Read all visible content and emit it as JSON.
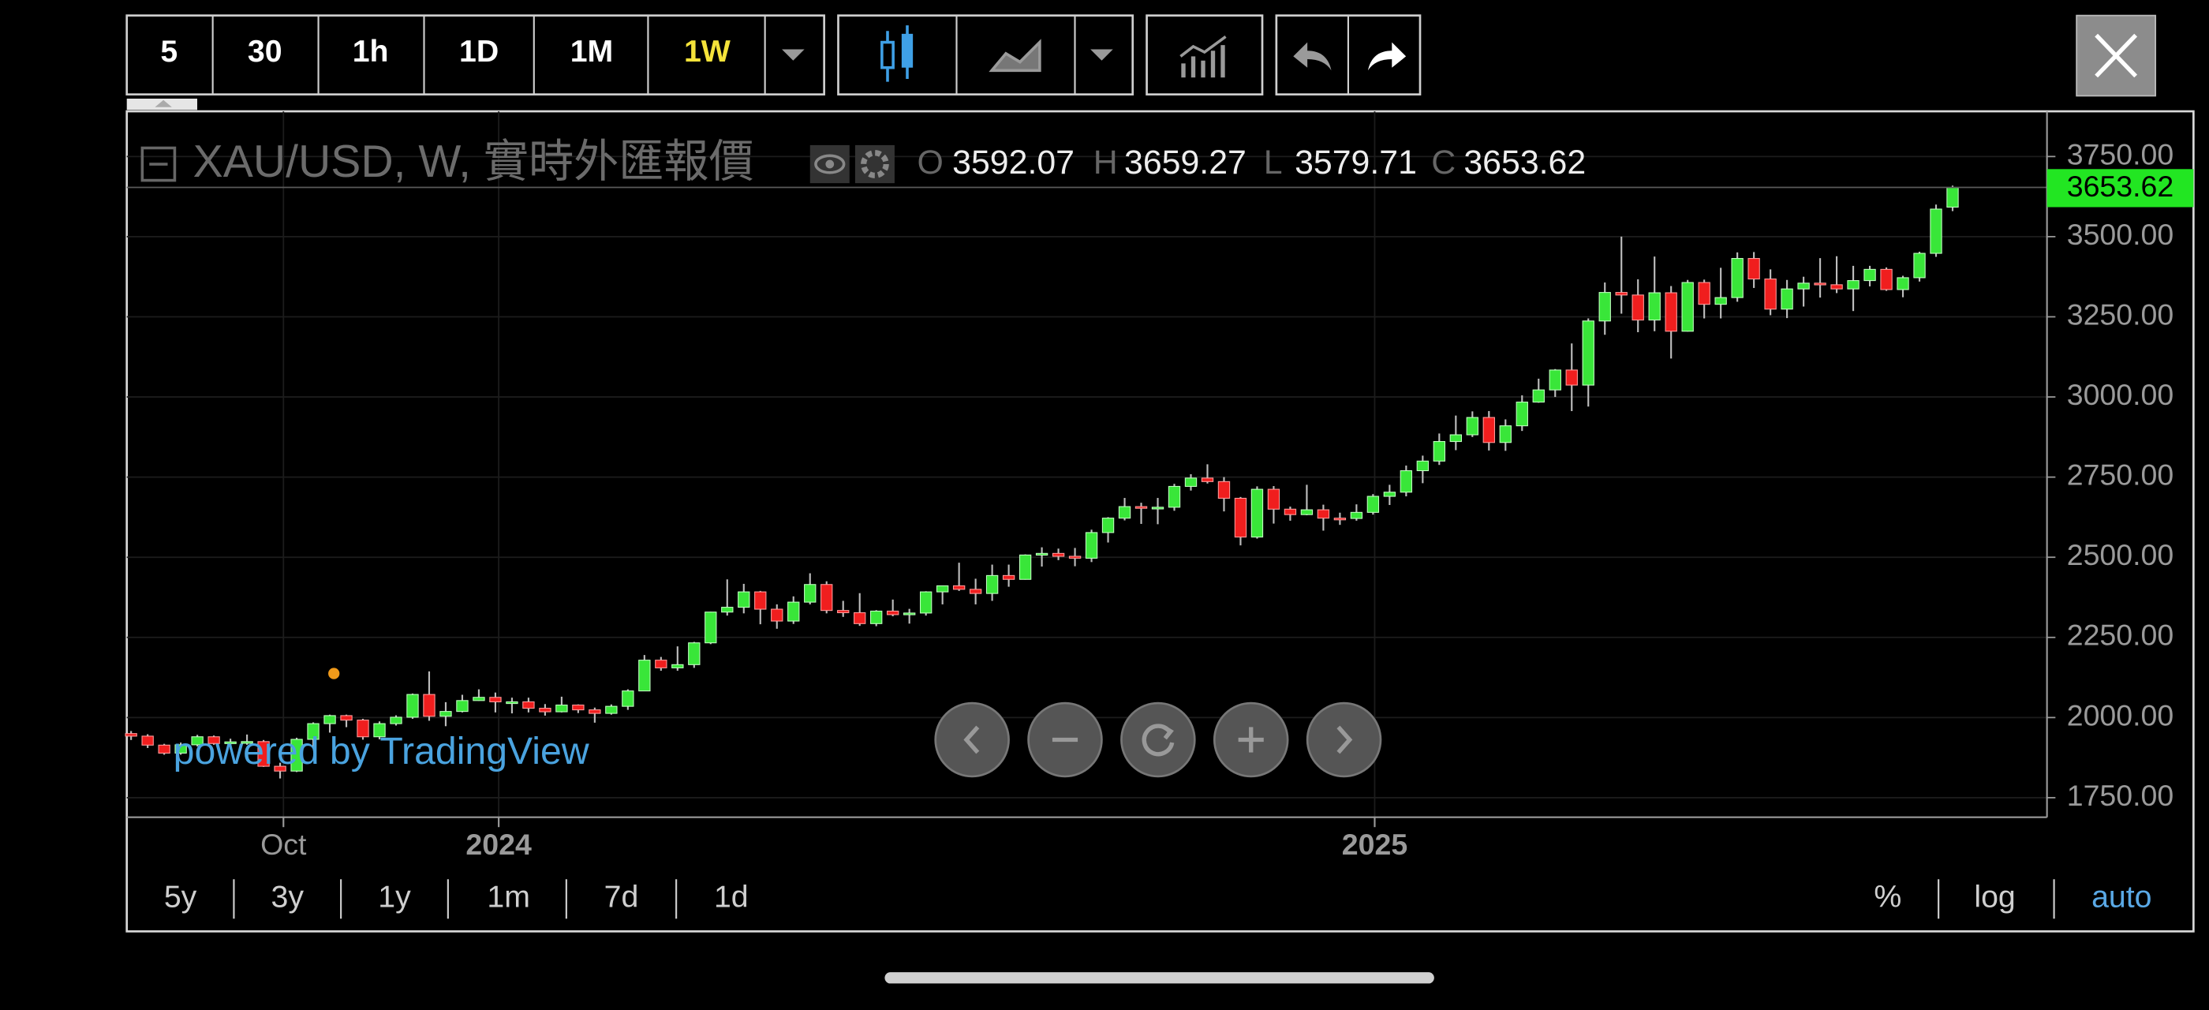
{
  "toolbar": {
    "intervals": [
      "5",
      "30",
      "1h",
      "1D",
      "1M",
      "1W"
    ]
  },
  "ranges": [
    "5y",
    "3y",
    "1y",
    "1m",
    "7d",
    "1d"
  ],
  "scale_options": [
    "%",
    "log",
    "auto"
  ],
  "watermark": "powered by TradingView",
  "chart_data": {
    "type": "candlestick",
    "title": "XAU/USD, W, 實時外匯報價",
    "ohlc_labels": [
      "O",
      "H",
      "L",
      "C"
    ],
    "open": [
      1950,
      1942,
      1914,
      1889,
      1915,
      1940,
      1919,
      1924,
      1925,
      1848,
      1833,
      1932,
      1981,
      2006,
      1992,
      1940,
      1981,
      2001,
      2072,
      2004,
      2019,
      2053,
      2063,
      2049,
      2049,
      2029,
      2018,
      2039,
      2024,
      2013,
      2035,
      2083,
      2179,
      2155,
      2165,
      2233,
      2329,
      2344,
      2392,
      2338,
      2301,
      2360,
      2415,
      2334,
      2327,
      2293,
      2332,
      2321,
      2326,
      2392,
      2411,
      2400,
      2387,
      2443,
      2431,
      2507,
      2512,
      2503,
      2497,
      2577,
      2622,
      2658,
      2653,
      2656,
      2721,
      2747,
      2736,
      2684,
      2563,
      2712,
      2650,
      2633,
      2648,
      2622,
      2621,
      2640,
      2690,
      2703,
      2770,
      2800,
      2861,
      2882,
      2936,
      2858,
      2910,
      2984,
      3022,
      3084,
      3037,
      3237,
      3326,
      3318,
      3240,
      3325,
      3205,
      3357,
      3289,
      3310,
      3432,
      3368,
      3274,
      3337,
      3355,
      3350,
      3337,
      3363,
      3398,
      3335,
      3372,
      3448,
      3592.07
    ],
    "high": [
      1958,
      1948,
      1918,
      1922,
      1946,
      1944,
      1934,
      1947,
      1930,
      1859,
      1937,
      1985,
      2009,
      2009,
      1996,
      1988,
      2007,
      2075,
      2144,
      2048,
      2071,
      2088,
      2078,
      2062,
      2062,
      2042,
      2065,
      2041,
      2031,
      2041,
      2088,
      2195,
      2189,
      2222,
      2236,
      2330,
      2431,
      2417,
      2395,
      2353,
      2378,
      2450,
      2425,
      2364,
      2388,
      2335,
      2368,
      2339,
      2394,
      2412,
      2483,
      2433,
      2477,
      2477,
      2509,
      2531,
      2527,
      2529,
      2586,
      2625,
      2685,
      2670,
      2685,
      2729,
      2759,
      2790,
      2750,
      2688,
      2721,
      2722,
      2658,
      2726,
      2664,
      2639,
      2665,
      2697,
      2726,
      2786,
      2817,
      2886,
      2942,
      2955,
      2956,
      2930,
      3005,
      3057,
      3087,
      3167,
      3245,
      3357,
      3500,
      3367,
      3438,
      3346,
      3365,
      3366,
      3403,
      3451,
      3452,
      3398,
      3365,
      3375,
      3433,
      3439,
      3409,
      3409,
      3404,
      3378,
      3453,
      3600,
      3659.27
    ],
    "low": [
      1930,
      1905,
      1884,
      1884,
      1910,
      1915,
      1901,
      1915,
      1846,
      1810,
      1830,
      1908,
      1953,
      1970,
      1931,
      1932,
      1975,
      1996,
      1990,
      1973,
      2016,
      2052,
      2016,
      2013,
      2016,
      2006,
      2016,
      2014,
      1984,
      2009,
      2024,
      2083,
      2146,
      2146,
      2155,
      2229,
      2318,
      2325,
      2291,
      2277,
      2292,
      2353,
      2325,
      2314,
      2286,
      2285,
      2316,
      2293,
      2318,
      2353,
      2395,
      2353,
      2364,
      2408,
      2430,
      2471,
      2491,
      2472,
      2485,
      2546,
      2615,
      2604,
      2603,
      2645,
      2708,
      2730,
      2643,
      2537,
      2558,
      2605,
      2614,
      2631,
      2583,
      2601,
      2614,
      2633,
      2663,
      2690,
      2731,
      2788,
      2834,
      2875,
      2833,
      2832,
      2894,
      2982,
      3000,
      2956,
      2970,
      3194,
      3260,
      3202,
      3205,
      3120,
      3204,
      3245,
      3245,
      3297,
      3340,
      3255,
      3246,
      3282,
      3310,
      3324,
      3268,
      3345,
      3331,
      3311,
      3360,
      3437,
      3579.71
    ],
    "close": [
      1942,
      1914,
      1889,
      1915,
      1940,
      1919,
      1924,
      1925,
      1848,
      1833,
      1932,
      1981,
      2006,
      1992,
      1940,
      1981,
      2001,
      2072,
      2004,
      2019,
      2053,
      2063,
      2049,
      2049,
      2029,
      2018,
      2039,
      2024,
      2013,
      2035,
      2083,
      2179,
      2155,
      2165,
      2233,
      2329,
      2344,
      2392,
      2338,
      2301,
      2360,
      2415,
      2334,
      2327,
      2293,
      2332,
      2321,
      2326,
      2392,
      2411,
      2400,
      2387,
      2443,
      2431,
      2507,
      2512,
      2503,
      2497,
      2577,
      2622,
      2658,
      2653,
      2656,
      2721,
      2747,
      2736,
      2684,
      2563,
      2712,
      2650,
      2633,
      2648,
      2622,
      2621,
      2640,
      2690,
      2703,
      2770,
      2800,
      2861,
      2882,
      2936,
      2858,
      2910,
      2984,
      3022,
      3084,
      3037,
      3237,
      3326,
      3318,
      3240,
      3325,
      3205,
      3357,
      3289,
      3310,
      3432,
      3368,
      3274,
      3337,
      3355,
      3350,
      3337,
      3363,
      3398,
      3335,
      3372,
      3448,
      3586,
      3653.62
    ],
    "up_color": "#39e639",
    "down_color": "#f01e1e",
    "wick_color": "#bdbdbd",
    "xlim": [
      -0.26,
      115.7
    ],
    "xticks": [
      {
        "value": 9.2,
        "label": "Oct"
      },
      {
        "value": 22.2,
        "label": "2024"
      },
      {
        "value": 75.1,
        "label": "2025"
      }
    ],
    "ylim": [
      1689,
      3891
    ],
    "yticks": [
      {
        "value": 1750,
        "label": "1750.00"
      },
      {
        "value": 2000,
        "label": "2000.00"
      },
      {
        "value": 2250,
        "label": "2250.00"
      },
      {
        "value": 2500,
        "label": "2500.00"
      },
      {
        "value": 2750,
        "label": "2750.00"
      },
      {
        "value": 3000,
        "label": "3000.00"
      },
      {
        "value": 3250,
        "label": "3250.00"
      },
      {
        "value": 3500,
        "label": "3500.00"
      },
      {
        "value": 3750,
        "label": "3750.00"
      }
    ],
    "grid": true
  }
}
